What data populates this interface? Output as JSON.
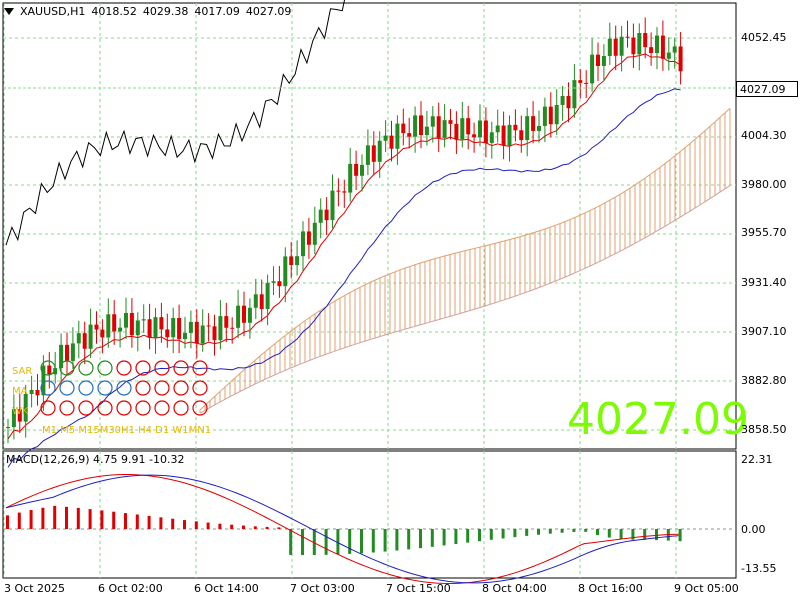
{
  "header": {
    "symbol": "XAUUSD,H1",
    "open": "4018.52",
    "high": "4029.38",
    "low": "4017.09",
    "close": "4027.09"
  },
  "current_price": "4027.09",
  "big_price": "4027.09",
  "price_axis": [
    "4052.45",
    "4004.30",
    "3980.00",
    "3955.70",
    "3931.40",
    "3907.10",
    "3882.80",
    "3858.50"
  ],
  "macd": {
    "label": "MACD(12,26,9) 4.75 9.91 -10.32",
    "axis": [
      "22.31",
      "0.00",
      "-13.55"
    ]
  },
  "time_axis": [
    "3 Oct 2025",
    "6 Oct 02:00",
    "6 Oct 14:00",
    "7 Oct 03:00",
    "7 Oct 15:00",
    "8 Oct 04:00",
    "8 Oct 16:00",
    "9 Oct 05:00"
  ],
  "indicator_panel": {
    "rows": [
      "SAR",
      "MA",
      "WK"
    ],
    "timeframes": "M1 M5 M15M30H1 H4 D1 W1MN1"
  },
  "colors": {
    "up": "#228b22",
    "down": "#e00000",
    "grid": "#80e080",
    "cloud": "#e0a070",
    "big_price": "#7cfc00",
    "macd_signal": "#1f1fbf",
    "macd_main": "#e00000"
  },
  "chart_data": {
    "type": "candlestick",
    "candles_close_trend": [
      3860,
      3880,
      3900,
      3920,
      3945,
      3960,
      3955,
      3950,
      3965,
      3975,
      3970,
      3985,
      3990,
      3975,
      3960,
      3965,
      3980,
      3995,
      4005,
      4015,
      4030,
      4040,
      4050,
      4055,
      4045,
      4025,
      4010,
      4027.09
    ],
    "ylim": [
      3845,
      4065
    ],
    "macd_ylim": [
      -16,
      25
    ]
  }
}
